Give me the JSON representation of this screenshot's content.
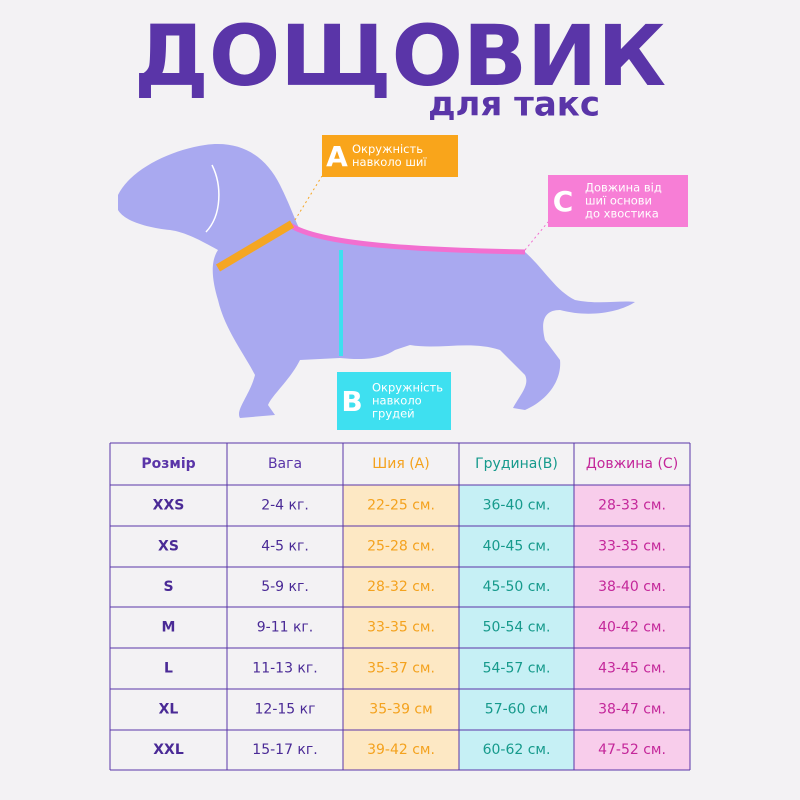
{
  "header": {
    "title": "ДОЩОВИК",
    "subtitle": "для такс"
  },
  "labels": {
    "a": {
      "letter": "A",
      "lines": [
        "Окружність",
        "навколо шиї"
      ]
    },
    "b": {
      "letter": "B",
      "lines": [
        "Окружність",
        "навколо",
        "грудей"
      ]
    },
    "c": {
      "letter": "C",
      "lines": [
        "Довжина від",
        "шиї основи",
        "до хвостика"
      ]
    }
  },
  "table": {
    "header": [
      "Розмір",
      "Вага",
      "Шия (А)",
      "Грудина(В)",
      "Довжина (С)"
    ],
    "rows": [
      [
        "XXS",
        "2-4 кг.",
        "22-25 см.",
        "36-40 см.",
        "28-33 см."
      ],
      [
        "XS",
        "4-5 кг.",
        "25-28 см.",
        "40-45 см.",
        "33-35 см."
      ],
      [
        "S",
        "5-9 кг.",
        "28-32 см.",
        "45-50 см.",
        "38-40 см."
      ],
      [
        "M",
        "9-11 кг.",
        "33-35 см.",
        "50-54 см.",
        "40-42 см."
      ],
      [
        "L",
        "11-13 кг.",
        "35-37 см.",
        "54-57 см.",
        "43-45 см."
      ],
      [
        "XL",
        "12-15 кг",
        "35-39 см",
        "57-60 см",
        "38-47 см."
      ],
      [
        "XXL",
        "15-17 кг.",
        "39-42 см.",
        "60-62 см.",
        "47-52 см."
      ]
    ]
  }
}
